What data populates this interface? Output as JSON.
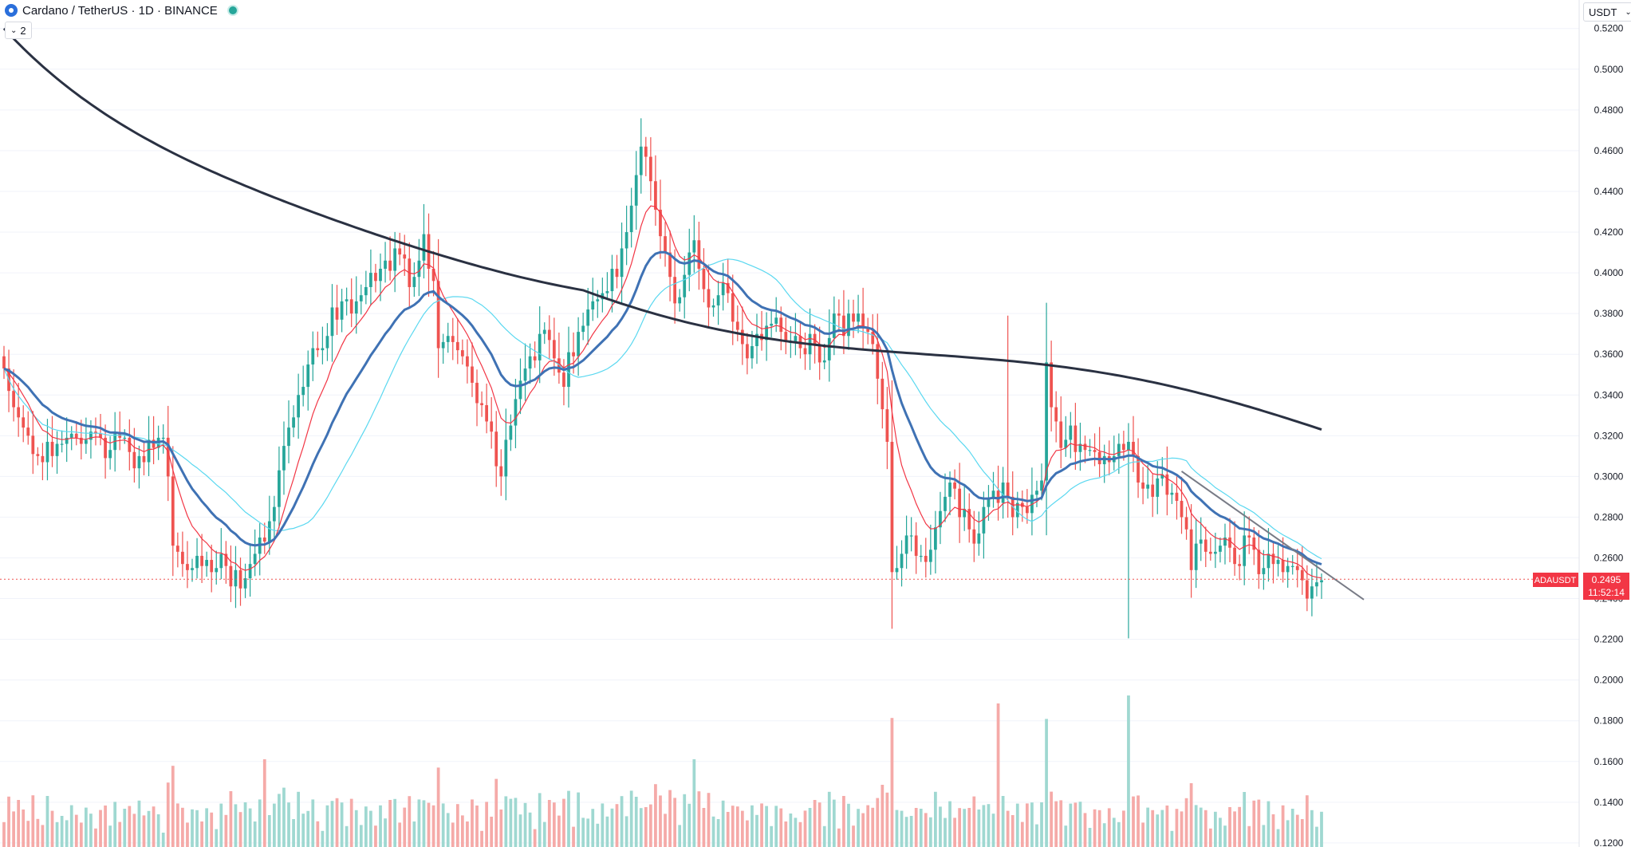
{
  "header": {
    "symbol_title": "Cardano / TetherUS · 1D · BINANCE",
    "collapse_label": "2",
    "currency": "USDT"
  },
  "price_label": {
    "ticker": "ADAUSDT",
    "price": "0.2495",
    "countdown": "11:52:14"
  },
  "colors": {
    "up": "#26a69a",
    "down": "#ef5350",
    "vol_up": "#9fd8d1",
    "vol_down": "#f5aaa8",
    "ema_red": "#f23645",
    "ema_cyan": "#5ad8f0",
    "ma_blue": "#3f72b4",
    "ma_dark": "#2a3142",
    "trendline": "#787b86"
  },
  "chart_data": {
    "type": "candlestick",
    "title": "Cardano / TetherUS · 1D · BINANCE",
    "ylim": [
      0.118,
      0.534
    ],
    "y_ticks": [
      "0.5200",
      "0.5000",
      "0.4800",
      "0.4600",
      "0.4400",
      "0.4200",
      "0.4000",
      "0.3800",
      "0.3600",
      "0.3400",
      "0.3200",
      "0.3000",
      "0.2800",
      "0.2600",
      "0.2400",
      "0.2200",
      "0.2000",
      "0.1800",
      "0.1600",
      "0.1400",
      "0.1200"
    ],
    "last_price": 0.2495,
    "close_series": [
      0.353,
      0.342,
      0.334,
      0.329,
      0.324,
      0.32,
      0.311,
      0.31,
      0.307,
      0.317,
      0.31,
      0.316,
      0.316,
      0.319,
      0.321,
      0.319,
      0.316,
      0.318,
      0.322,
      0.321,
      0.319,
      0.309,
      0.313,
      0.321,
      0.319,
      0.319,
      0.312,
      0.304,
      0.31,
      0.307,
      0.318,
      0.314,
      0.319,
      0.319,
      0.3,
      0.266,
      0.263,
      0.257,
      0.254,
      0.255,
      0.261,
      0.256,
      0.259,
      0.253,
      0.255,
      0.262,
      0.256,
      0.246,
      0.254,
      0.245,
      0.25,
      0.257,
      0.262,
      0.27,
      0.268,
      0.278,
      0.285,
      0.303,
      0.315,
      0.324,
      0.329,
      0.34,
      0.344,
      0.355,
      0.363,
      0.362,
      0.363,
      0.369,
      0.383,
      0.377,
      0.386,
      0.387,
      0.38,
      0.386,
      0.389,
      0.393,
      0.4,
      0.396,
      0.402,
      0.406,
      0.401,
      0.412,
      0.409,
      0.407,
      0.393,
      0.398,
      0.406,
      0.419,
      0.402,
      0.396,
      0.363,
      0.366,
      0.369,
      0.366,
      0.362,
      0.359,
      0.354,
      0.346,
      0.336,
      0.335,
      0.327,
      0.322,
      0.305,
      0.3,
      0.318,
      0.325,
      0.338,
      0.347,
      0.353,
      0.359,
      0.357,
      0.37,
      0.372,
      0.367,
      0.358,
      0.351,
      0.344,
      0.361,
      0.359,
      0.371,
      0.374,
      0.382,
      0.386,
      0.387,
      0.39,
      0.391,
      0.402,
      0.398,
      0.412,
      0.42,
      0.433,
      0.448,
      0.462,
      0.457,
      0.445,
      0.431,
      0.418,
      0.41,
      0.398,
      0.385,
      0.388,
      0.399,
      0.41,
      0.416,
      0.402,
      0.392,
      0.383,
      0.384,
      0.389,
      0.395,
      0.39,
      0.376,
      0.372,
      0.365,
      0.358,
      0.364,
      0.37,
      0.367,
      0.374,
      0.375,
      0.378,
      0.371,
      0.366,
      0.366,
      0.369,
      0.363,
      0.36,
      0.37,
      0.365,
      0.356,
      0.357,
      0.368,
      0.38,
      0.379,
      0.369,
      0.38,
      0.376,
      0.38,
      0.373,
      0.371,
      0.365,
      0.348,
      0.333,
      0.317,
      0.253,
      0.255,
      0.262,
      0.271,
      0.271,
      0.261,
      0.261,
      0.258,
      0.264,
      0.275,
      0.283,
      0.29,
      0.297,
      0.294,
      0.28,
      0.284,
      0.274,
      0.267,
      0.272,
      0.285,
      0.289,
      0.293,
      0.287,
      0.297,
      0.29,
      0.28,
      0.287,
      0.285,
      0.282,
      0.291,
      0.293,
      0.298,
      0.356,
      0.334,
      0.327,
      0.314,
      0.318,
      0.325,
      0.312,
      0.316,
      0.313,
      0.313,
      0.312,
      0.306,
      0.31,
      0.307,
      0.31,
      0.316,
      0.313,
      0.317,
      0.31,
      0.297,
      0.294,
      0.296,
      0.29,
      0.299,
      0.301,
      0.291,
      0.292,
      0.288,
      0.28,
      0.274,
      0.254,
      0.267,
      0.269,
      0.263,
      0.262,
      0.263,
      0.266,
      0.27,
      0.265,
      0.257,
      0.256,
      0.271,
      0.27,
      0.264,
      0.252,
      0.255,
      0.262,
      0.257,
      0.259,
      0.253,
      0.256,
      0.256,
      0.254,
      0.249,
      0.24,
      0.246,
      0.248,
      0.249
    ]
  }
}
